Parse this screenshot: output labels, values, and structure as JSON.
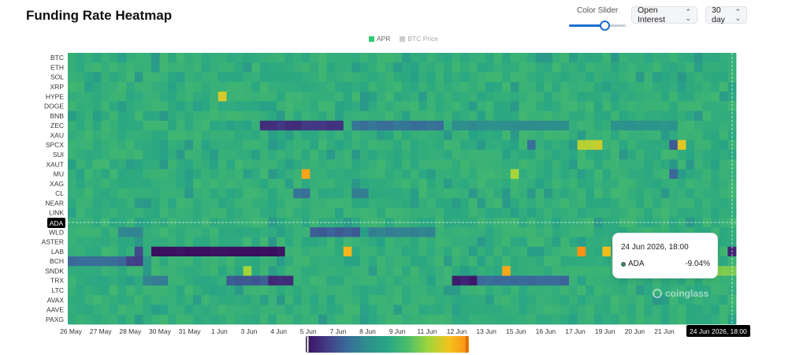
{
  "header": {
    "title": "Funding Rate Heatmap",
    "slider": {
      "label": "Color Slider",
      "level": 0.62
    },
    "metric_select": {
      "value": "Open Interest"
    },
    "range_select": {
      "value": "30 day"
    }
  },
  "legend": [
    {
      "label": "APR",
      "color": "#2ecc71",
      "active": true
    },
    {
      "label": "BTC Price",
      "color": "#cccccc",
      "active": false
    }
  ],
  "tooltip": {
    "date": "24 Jun 2026, 18:00",
    "asset": "ADA",
    "value": "-9.04%"
  },
  "crosshair": {
    "x_label": "24 Jun 2026, 18:00",
    "y_label": "ADA"
  },
  "watermark": "coinglass",
  "colors": {
    "scale": [
      "#3b0f5f",
      "#433b86",
      "#3a6a9a",
      "#2e8f8c",
      "#27a585",
      "#4bbd6a",
      "#9fd63c",
      "#f2c41e",
      "#ff8a14"
    ],
    "base": "#2ea487"
  },
  "chart_data": {
    "type": "heatmap",
    "title": "Funding Rate Heatmap",
    "y_categories": [
      "BTC",
      "ETH",
      "SOL",
      "XRP",
      "HYPE",
      "DOGE",
      "BNB",
      "ZEC",
      "XAU",
      "SPCX",
      "SUI",
      "XAUT",
      "MU",
      "XAG",
      "CL",
      "NEAR",
      "LINK",
      "ADA",
      "WLD",
      "ASTER",
      "LAB",
      "BCH",
      "SNDK",
      "TRX",
      "LTC",
      "AVAX",
      "AAVE",
      "PAXG"
    ],
    "x_ticks": [
      "26 May",
      "27 May",
      "28 May",
      "30 May",
      "31 May",
      "1 Jun",
      "3 Jun",
      "4 Jun",
      "5 Jun",
      "7 Jun",
      "8 Jun",
      "9 Jun",
      "11 Jun",
      "12 Jun",
      "13 Jun",
      "15 Jun",
      "16 Jun",
      "17 Jun",
      "19 Jun",
      "20 Jun",
      "21 Jun"
    ],
    "columns": 80,
    "value_scale": [
      -1,
      1
    ],
    "baseline": 0.1,
    "features": [
      {
        "row": "ZEC",
        "from": 23,
        "to": 33,
        "value": -0.8
      },
      {
        "row": "ZEC",
        "from": 34,
        "to": 45,
        "value": -0.45
      },
      {
        "row": "ZEC",
        "from": 46,
        "to": 60,
        "value": -0.25
      },
      {
        "row": "ZEC",
        "from": 65,
        "to": 73,
        "value": -0.2
      },
      {
        "row": "LAB",
        "from": 10,
        "to": 26,
        "value": -1.0
      },
      {
        "row": "LAB",
        "from": 8,
        "to": 9,
        "value": -0.7
      },
      {
        "row": "LAB",
        "from": 33,
        "to": 34,
        "value": 0.78
      },
      {
        "row": "LAB",
        "from": 61,
        "to": 62,
        "value": 0.95
      },
      {
        "row": "LAB",
        "from": 64,
        "to": 65,
        "value": 0.8
      },
      {
        "row": "LAB",
        "from": 79,
        "to": 80,
        "value": -0.9
      },
      {
        "row": "WLD",
        "from": 29,
        "to": 35,
        "value": -0.55
      },
      {
        "row": "WLD",
        "from": 36,
        "to": 44,
        "value": -0.35
      },
      {
        "row": "WLD",
        "from": 6,
        "to": 9,
        "value": -0.3
      },
      {
        "row": "BCH",
        "from": 0,
        "to": 7,
        "value": -0.5
      },
      {
        "row": "BCH",
        "from": 7,
        "to": 9,
        "value": -0.75
      },
      {
        "row": "TRX",
        "from": 19,
        "to": 24,
        "value": -0.6
      },
      {
        "row": "TRX",
        "from": 24,
        "to": 27,
        "value": -0.85
      },
      {
        "row": "TRX",
        "from": 46,
        "to": 49,
        "value": -0.9
      },
      {
        "row": "TRX",
        "from": 49,
        "to": 60,
        "value": -0.5
      },
      {
        "row": "TRX",
        "from": 9,
        "to": 12,
        "value": -0.35
      },
      {
        "row": "MU",
        "from": 28,
        "to": 29,
        "value": 0.85
      },
      {
        "row": "MU",
        "from": 53,
        "to": 54,
        "value": 0.55
      },
      {
        "row": "MU",
        "from": 72,
        "to": 73,
        "value": -0.5
      },
      {
        "row": "SPCX",
        "from": 61,
        "to": 64,
        "value": 0.6
      },
      {
        "row": "SPCX",
        "from": 72,
        "to": 73,
        "value": -0.55
      },
      {
        "row": "SPCX",
        "from": 73,
        "to": 74,
        "value": 0.7
      },
      {
        "row": "SPCX",
        "from": 55,
        "to": 56,
        "value": -0.45
      },
      {
        "row": "HYPE",
        "from": 18,
        "to": 19,
        "value": 0.7
      },
      {
        "row": "CL",
        "from": 27,
        "to": 29,
        "value": -0.45
      },
      {
        "row": "CL",
        "from": 34,
        "to": 36,
        "value": -0.35
      },
      {
        "row": "SNDK",
        "from": 52,
        "to": 53,
        "value": 0.85
      },
      {
        "row": "SNDK",
        "from": 21,
        "to": 22,
        "value": 0.5
      },
      {
        "row": "SNDK",
        "from": 74,
        "to": 80,
        "value": 0.4
      }
    ]
  }
}
